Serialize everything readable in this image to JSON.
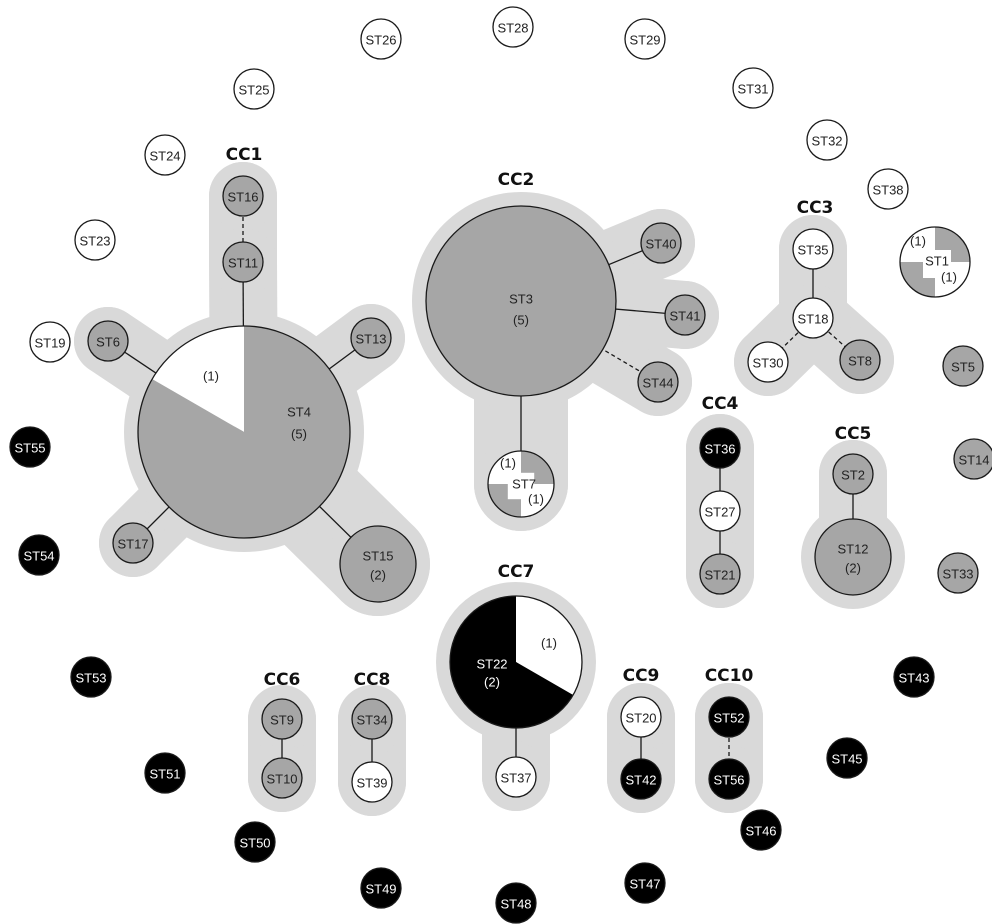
{
  "colors": {
    "halo": "#d9d9d9",
    "white": "#ffffff",
    "gray": "#a6a6a6",
    "black": "#000000",
    "stroke": "#1a1a1a"
  },
  "clusters": [
    {
      "id": "cc1",
      "label": "CC1"
    },
    {
      "id": "cc2",
      "label": "CC2"
    },
    {
      "id": "cc3",
      "label": "CC3"
    },
    {
      "id": "cc4",
      "label": "CC4"
    },
    {
      "id": "cc5",
      "label": "CC5"
    },
    {
      "id": "cc6",
      "label": "CC6"
    },
    {
      "id": "cc7",
      "label": "CC7"
    },
    {
      "id": "cc8",
      "label": "CC8"
    },
    {
      "id": "cc9",
      "label": "CC9"
    },
    {
      "id": "cc10",
      "label": "CC10"
    }
  ],
  "nodes": [
    {
      "id": "ST4",
      "label": "ST4",
      "count": "(5)",
      "slice_label": "(1)"
    },
    {
      "id": "ST3",
      "label": "ST3",
      "count": "(5)"
    },
    {
      "id": "ST7",
      "label": "ST7",
      "slice_label_a": "(1)",
      "slice_label_b": "(1)"
    },
    {
      "id": "ST1",
      "label": "ST1",
      "slice_label_a": "(1)",
      "slice_label_b": "(1)"
    },
    {
      "id": "ST22",
      "label": "ST22",
      "count": "(2)",
      "slice_label": "(1)"
    },
    {
      "id": "ST15",
      "label": "ST15",
      "count": "(2)"
    },
    {
      "id": "ST12",
      "label": "ST12",
      "count": "(2)"
    },
    {
      "id": "ST16",
      "label": "ST16"
    },
    {
      "id": "ST11",
      "label": "ST11"
    },
    {
      "id": "ST6",
      "label": "ST6"
    },
    {
      "id": "ST13",
      "label": "ST13"
    },
    {
      "id": "ST17",
      "label": "ST17"
    },
    {
      "id": "ST40",
      "label": "ST40"
    },
    {
      "id": "ST41",
      "label": "ST41"
    },
    {
      "id": "ST44",
      "label": "ST44"
    },
    {
      "id": "ST35",
      "label": "ST35"
    },
    {
      "id": "ST18",
      "label": "ST18"
    },
    {
      "id": "ST30",
      "label": "ST30"
    },
    {
      "id": "ST8",
      "label": "ST8"
    },
    {
      "id": "ST36",
      "label": "ST36"
    },
    {
      "id": "ST27",
      "label": "ST27"
    },
    {
      "id": "ST21",
      "label": "ST21"
    },
    {
      "id": "ST2",
      "label": "ST2"
    },
    {
      "id": "ST9",
      "label": "ST9"
    },
    {
      "id": "ST10",
      "label": "ST10"
    },
    {
      "id": "ST34",
      "label": "ST34"
    },
    {
      "id": "ST39",
      "label": "ST39"
    },
    {
      "id": "ST37",
      "label": "ST37"
    },
    {
      "id": "ST20",
      "label": "ST20"
    },
    {
      "id": "ST42",
      "label": "ST42"
    },
    {
      "id": "ST52",
      "label": "ST52"
    },
    {
      "id": "ST56",
      "label": "ST56"
    },
    {
      "id": "ST26",
      "label": "ST26"
    },
    {
      "id": "ST28",
      "label": "ST28"
    },
    {
      "id": "ST29",
      "label": "ST29"
    },
    {
      "id": "ST25",
      "label": "ST25"
    },
    {
      "id": "ST31",
      "label": "ST31"
    },
    {
      "id": "ST24",
      "label": "ST24"
    },
    {
      "id": "ST32",
      "label": "ST32"
    },
    {
      "id": "ST38",
      "label": "ST38"
    },
    {
      "id": "ST23",
      "label": "ST23"
    },
    {
      "id": "ST19",
      "label": "ST19"
    },
    {
      "id": "ST5",
      "label": "ST5"
    },
    {
      "id": "ST55",
      "label": "ST55"
    },
    {
      "id": "ST14",
      "label": "ST14"
    },
    {
      "id": "ST54",
      "label": "ST54"
    },
    {
      "id": "ST33",
      "label": "ST33"
    },
    {
      "id": "ST53",
      "label": "ST53"
    },
    {
      "id": "ST43",
      "label": "ST43"
    },
    {
      "id": "ST51",
      "label": "ST51"
    },
    {
      "id": "ST45",
      "label": "ST45"
    },
    {
      "id": "ST50",
      "label": "ST50"
    },
    {
      "id": "ST46",
      "label": "ST46"
    },
    {
      "id": "ST49",
      "label": "ST49"
    },
    {
      "id": "ST48",
      "label": "ST48"
    },
    {
      "id": "ST47",
      "label": "ST47"
    }
  ]
}
